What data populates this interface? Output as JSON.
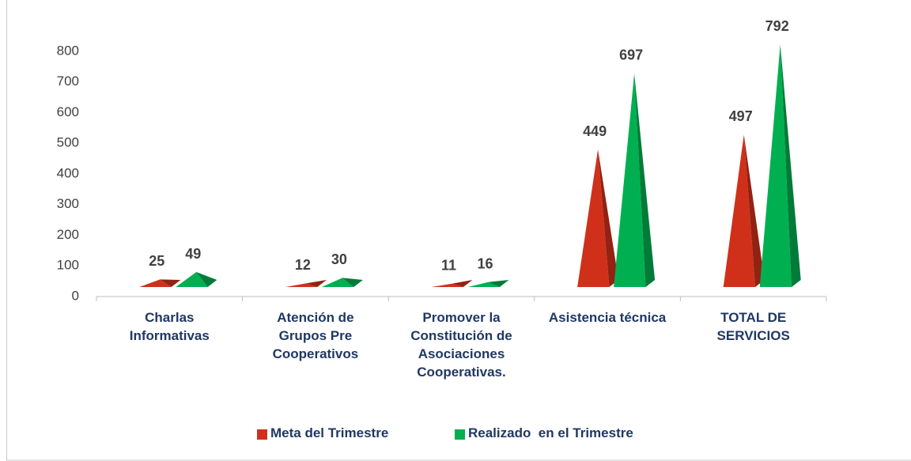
{
  "chart_data": {
    "type": "pyramid",
    "categories": [
      "Charlas Informativas",
      "Atención de Grupos Pre Cooperativos",
      "Promover la Constitución de Asociaciones Cooperativas.",
      "Asistencia técnica",
      "TOTAL DE SERVICIOS"
    ],
    "series": [
      {
        "name": "Meta del Trimestre",
        "color": "#d0301a",
        "values": [
          25,
          12,
          11,
          449,
          497
        ]
      },
      {
        "name": "Realizado  en el Trimestre",
        "color": "#00b050",
        "values": [
          49,
          30,
          16,
          697,
          792
        ]
      }
    ],
    "ylim": [
      0,
      800
    ],
    "yticks": [
      0,
      100,
      200,
      300,
      400,
      500,
      600,
      700,
      800
    ],
    "legend": "bottom"
  }
}
